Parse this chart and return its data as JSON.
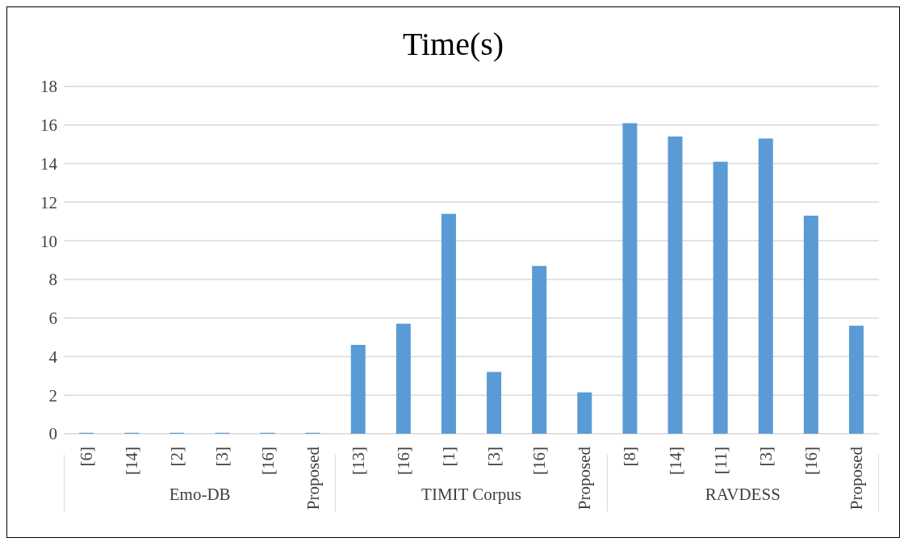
{
  "chart_data": {
    "type": "bar",
    "title": "Time(s)",
    "categories": [
      "[6]",
      "[14]",
      "[2]",
      "[3]",
      "[16]",
      "Proposed",
      "[13]",
      "[16]",
      "[1]",
      "[3]",
      "[16]",
      "Proposed",
      "[8]",
      "[14]",
      "[11]",
      "[3]",
      "[16]",
      "Proposed"
    ],
    "values": [
      0.05,
      0.05,
      0.05,
      0.05,
      0.05,
      0.05,
      4.6,
      5.7,
      11.4,
      3.2,
      8.7,
      2.15,
      16.1,
      15.4,
      14.1,
      15.3,
      11.3,
      5.6
    ],
    "color": "#5b9bd5",
    "ylim": [
      0,
      18
    ],
    "yticks": [
      0,
      2,
      4,
      6,
      8,
      10,
      12,
      14,
      16,
      18
    ],
    "grid": "y",
    "annotations": [
      "Emo-DB",
      "TIMIT Corpus",
      "RAVDESS"
    ]
  }
}
